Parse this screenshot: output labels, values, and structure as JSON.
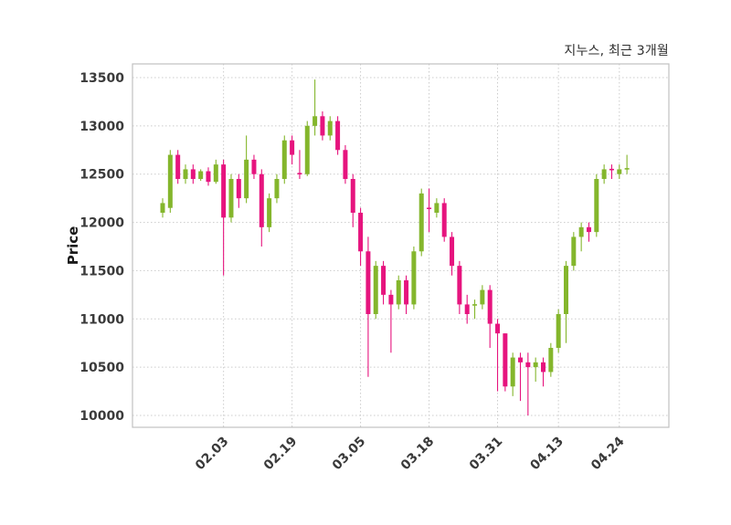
{
  "figure": {
    "title": "지누스, 최근 3개월",
    "ylabel": "Price"
  },
  "chart_data": {
    "type": "candlestick",
    "title": "지누스, 최근 3개월",
    "xlabel": "",
    "ylabel": "Price",
    "ylim": [
      10000,
      13500
    ],
    "yticks": [
      10000,
      10500,
      11000,
      11500,
      12000,
      12500,
      13000,
      13500
    ],
    "xticks": [
      {
        "index": 8,
        "label": "02.03"
      },
      {
        "index": 17,
        "label": "02.19"
      },
      {
        "index": 26,
        "label": "03.05"
      },
      {
        "index": 35,
        "label": "03.18"
      },
      {
        "index": 44,
        "label": "03.31"
      },
      {
        "index": 52,
        "label": "04.13"
      },
      {
        "index": 60,
        "label": "04.24"
      }
    ],
    "grid": "dotted",
    "legend": "none",
    "colors": {
      "up": "#84b62c",
      "down": "#e6147e",
      "grid": "#cccccc",
      "spine": "#c0c0c0",
      "tick_text": "#3a3a3a"
    },
    "ohlc_format": [
      "open",
      "high",
      "low",
      "close"
    ],
    "ohlc": [
      [
        12100,
        12250,
        12050,
        12200
      ],
      [
        12150,
        12750,
        12100,
        12700
      ],
      [
        12700,
        12750,
        12400,
        12450
      ],
      [
        12450,
        12600,
        12400,
        12550
      ],
      [
        12550,
        12600,
        12400,
        12450
      ],
      [
        12450,
        12550,
        12430,
        12530
      ],
      [
        12530,
        12570,
        12380,
        12420
      ],
      [
        12420,
        12650,
        12400,
        12600
      ],
      [
        12600,
        12650,
        11450,
        12050
      ],
      [
        12050,
        12500,
        12000,
        12450
      ],
      [
        12450,
        12500,
        12150,
        12250
      ],
      [
        12250,
        12900,
        12200,
        12650
      ],
      [
        12650,
        12700,
        12450,
        12500
      ],
      [
        12500,
        12550,
        11750,
        11950
      ],
      [
        11950,
        12300,
        11900,
        12250
      ],
      [
        12250,
        12500,
        12200,
        12450
      ],
      [
        12450,
        12900,
        12400,
        12850
      ],
      [
        12850,
        12900,
        12600,
        12700
      ],
      [
        12510,
        12750,
        12450,
        12500
      ],
      [
        12500,
        13050,
        12480,
        13000
      ],
      [
        13000,
        13480,
        12900,
        13100
      ],
      [
        13100,
        13150,
        12850,
        12900
      ],
      [
        12900,
        13100,
        12850,
        13050
      ],
      [
        13050,
        13100,
        12700,
        12750
      ],
      [
        12750,
        12800,
        12400,
        12450
      ],
      [
        12450,
        12500,
        11950,
        12100
      ],
      [
        12100,
        12150,
        11550,
        11700
      ],
      [
        11700,
        11850,
        10400,
        11050
      ],
      [
        11050,
        11600,
        11000,
        11550
      ],
      [
        11550,
        11600,
        11150,
        11250
      ],
      [
        11250,
        11300,
        10650,
        11150
      ],
      [
        11150,
        11450,
        11100,
        11400
      ],
      [
        11400,
        11450,
        11050,
        11150
      ],
      [
        11150,
        11750,
        11100,
        11700
      ],
      [
        11700,
        12350,
        11650,
        12300
      ],
      [
        12150,
        12350,
        11900,
        12140
      ],
      [
        12100,
        12250,
        12050,
        12200
      ],
      [
        12200,
        12250,
        11800,
        11850
      ],
      [
        11850,
        11900,
        11450,
        11550
      ],
      [
        11550,
        11600,
        11050,
        11150
      ],
      [
        11150,
        11250,
        10950,
        11050
      ],
      [
        11140,
        11200,
        11000,
        11150
      ],
      [
        11150,
        11350,
        11100,
        11300
      ],
      [
        11300,
        11350,
        10700,
        10950
      ],
      [
        10950,
        11000,
        10250,
        10850
      ],
      [
        10850,
        10850,
        10250,
        10300
      ],
      [
        10300,
        10650,
        10200,
        10600
      ],
      [
        10600,
        10650,
        10150,
        10550
      ],
      [
        10550,
        10650,
        10000,
        10500
      ],
      [
        10500,
        10600,
        10350,
        10550
      ],
      [
        10550,
        10600,
        10300,
        10450
      ],
      [
        10450,
        10750,
        10400,
        10700
      ],
      [
        10700,
        11100,
        10650,
        11050
      ],
      [
        11050,
        11600,
        10750,
        11550
      ],
      [
        11550,
        11900,
        11500,
        11850
      ],
      [
        11850,
        12000,
        11700,
        11950
      ],
      [
        11950,
        12000,
        11800,
        11900
      ],
      [
        11900,
        12500,
        11850,
        12450
      ],
      [
        12450,
        12600,
        12400,
        12550
      ],
      [
        12550,
        12600,
        12450,
        12545
      ],
      [
        12500,
        12600,
        12450,
        12550
      ],
      [
        12550,
        12700,
        12500,
        12560
      ]
    ]
  }
}
